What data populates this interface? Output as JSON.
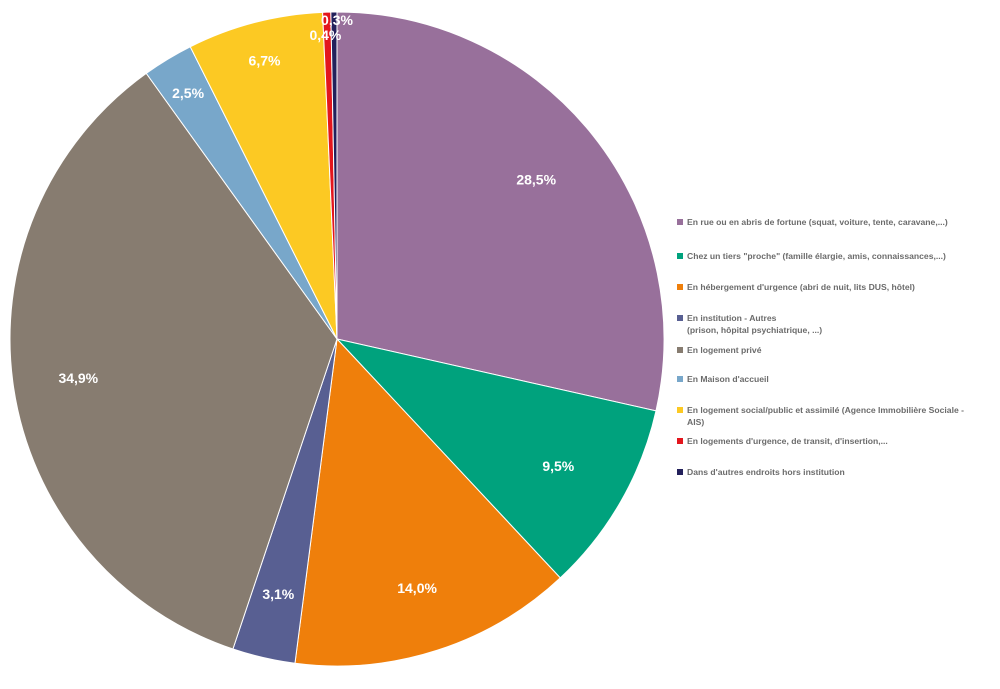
{
  "chart_data": {
    "type": "pie",
    "start_angle_deg": 0,
    "direction": "clockwise",
    "slices": [
      {
        "label": "En rue ou en abris de fortune  (squat, voiture, tente, caravane,...)",
        "value": 28.5,
        "value_label": "28,5%",
        "color": "#98709b"
      },
      {
        "label": "Chez un tiers \"proche\" (famille élargie, amis, connaissances,...)",
        "value": 9.5,
        "value_label": "9,5%",
        "color": "#00a27d"
      },
      {
        "label": "En hébergement d'urgence (abri de nuit, lits DUS, hôtel)",
        "value": 14.0,
        "value_label": "14,0%",
        "color": "#ef7f0b"
      },
      {
        "label": "En institution - Autres\n(prison, hôpital psychiatrique, ...)",
        "value": 3.1,
        "value_label": "3,1%",
        "color": "#585f92"
      },
      {
        "label": "En logement privé",
        "value": 34.9,
        "value_label": "34,9%",
        "color": "#877c70"
      },
      {
        "label": "En Maison d'accueil",
        "value": 2.5,
        "value_label": "2,5%",
        "color": "#78a7ca"
      },
      {
        "label": "En logement social/public et assimilé (Agence Immobilière Sociale -\nAIS)",
        "value": 6.7,
        "value_label": "6,7%",
        "color": "#fcc923"
      },
      {
        "label": "En logements  d'urgence, de transit, d'insertion,...",
        "value": 0.4,
        "value_label": "0,4%",
        "color": "#e3161d"
      },
      {
        "label": "Dans d'autres endroits hors institution",
        "value": 0.3,
        "value_label": "0,3%",
        "color": "#23205b"
      }
    ],
    "legend_position": "right"
  }
}
